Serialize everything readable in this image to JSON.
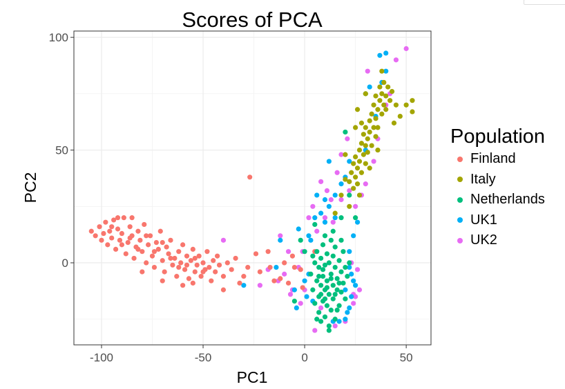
{
  "chart_data": {
    "type": "scatter",
    "title": "Scores of PCA",
    "xlabel": "PC1",
    "ylabel": "PC2",
    "xlim": [
      -113.6,
      62.2
    ],
    "ylim": [
      -36.4,
      102.8
    ],
    "x_ticks": [
      -100,
      -50,
      0,
      50
    ],
    "y_ticks": [
      0,
      50,
      100
    ],
    "x_tick_labels": [
      "-100",
      "-50",
      "0",
      "50"
    ],
    "y_tick_labels": [
      "0",
      "50",
      "100"
    ],
    "grid": true,
    "legend": {
      "title": "Population",
      "position": "right"
    },
    "series": [
      {
        "name": "Finland",
        "color": "#F8766D",
        "points": [
          [
            -105,
            14
          ],
          [
            -103,
            12
          ],
          [
            -101,
            16
          ],
          [
            -100,
            10
          ],
          [
            -99,
            13
          ],
          [
            -98,
            18
          ],
          [
            -97,
            8
          ],
          [
            -96,
            14
          ],
          [
            -95,
            11
          ],
          [
            -94,
            19
          ],
          [
            -93,
            6
          ],
          [
            -92,
            15
          ],
          [
            -91,
            10
          ],
          [
            -90,
            13
          ],
          [
            -89,
            20
          ],
          [
            -88,
            4
          ],
          [
            -87,
            9
          ],
          [
            -86,
            16
          ],
          [
            -85,
            12
          ],
          [
            -84,
            2
          ],
          [
            -83,
            7
          ],
          [
            -82,
            14
          ],
          [
            -81,
            10
          ],
          [
            -80,
            5
          ],
          [
            -79,
            17
          ],
          [
            -78,
            0
          ],
          [
            -77,
            8
          ],
          [
            -76,
            12
          ],
          [
            -75,
            3
          ],
          [
            -74,
            -2
          ],
          [
            -73,
            9
          ],
          [
            -72,
            6
          ],
          [
            -71,
            14
          ],
          [
            -70,
            1
          ],
          [
            -69,
            -4
          ],
          [
            -68,
            7
          ],
          [
            -67,
            4
          ],
          [
            -66,
            10
          ],
          [
            -65,
            -1
          ],
          [
            -64,
            2
          ],
          [
            -63,
            -6
          ],
          [
            -62,
            5
          ],
          [
            -61,
            0
          ],
          [
            -60,
            8
          ],
          [
            -59,
            -3
          ],
          [
            -58,
            3
          ],
          [
            -57,
            -7
          ],
          [
            -56,
            1
          ],
          [
            -55,
            6
          ],
          [
            -54,
            -4
          ],
          [
            -53,
            -1
          ],
          [
            -52,
            3
          ],
          [
            -51,
            -6
          ],
          [
            -50,
            0
          ],
          [
            -49,
            -3
          ],
          [
            -48,
            5
          ],
          [
            -47,
            -2
          ],
          [
            -46,
            -8
          ],
          [
            -45,
            1
          ],
          [
            -44,
            -4
          ],
          [
            -43,
            3
          ],
          [
            -42,
            -1
          ],
          [
            -40,
            -6
          ],
          [
            -38,
            0
          ],
          [
            -36,
            -3
          ],
          [
            -34,
            2
          ],
          [
            -32,
            -9
          ],
          [
            -30,
            -6
          ],
          [
            -28,
            -2
          ],
          [
            -27,
            38
          ],
          [
            -24,
            4
          ],
          [
            -22,
            -4
          ],
          [
            -18,
            5
          ],
          [
            -17,
            -2
          ],
          [
            -15,
            -8
          ],
          [
            -12,
            -7
          ],
          [
            -10,
            0
          ],
          [
            -8,
            -9
          ],
          [
            -6,
            3
          ],
          [
            -5,
            -2
          ],
          [
            -2,
            -3
          ],
          [
            -40,
            -12
          ],
          [
            -60,
            -10
          ],
          [
            -80,
            -4
          ],
          [
            -92,
            20
          ],
          [
            -85,
            20
          ],
          [
            -70,
            -8
          ],
          [
            -55,
            -9
          ],
          [
            5,
            5
          ],
          [
            -1,
            -11
          ],
          [
            -95,
            16
          ],
          [
            -90,
            8
          ],
          [
            -86,
            11
          ],
          [
            -82,
            6
          ],
          [
            -78,
            12
          ],
          [
            -74,
            5
          ],
          [
            -70,
            9
          ],
          [
            -66,
            2
          ],
          [
            -62,
            -2
          ],
          [
            -58,
            -1
          ],
          [
            -54,
            2
          ],
          [
            -50,
            -4
          ]
        ]
      },
      {
        "name": "Italy",
        "color": "#A3A500",
        "points": [
          [
            22,
            36
          ],
          [
            23,
            40
          ],
          [
            24,
            33
          ],
          [
            24,
            44
          ],
          [
            25,
            38
          ],
          [
            25,
            47
          ],
          [
            26,
            42
          ],
          [
            26,
            35
          ],
          [
            27,
            50
          ],
          [
            27,
            45
          ],
          [
            28,
            40
          ],
          [
            28,
            53
          ],
          [
            29,
            48
          ],
          [
            29,
            57
          ],
          [
            30,
            44
          ],
          [
            30,
            52
          ],
          [
            30,
            60
          ],
          [
            31,
            55
          ],
          [
            31,
            49
          ],
          [
            32,
            63
          ],
          [
            32,
            58
          ],
          [
            33,
            52
          ],
          [
            33,
            66
          ],
          [
            34,
            60
          ],
          [
            34,
            70
          ],
          [
            35,
            56
          ],
          [
            35,
            64
          ],
          [
            35,
            74
          ],
          [
            36,
            68
          ],
          [
            36,
            60
          ],
          [
            37,
            72
          ],
          [
            37,
            78
          ],
          [
            38,
            66
          ],
          [
            38,
            75
          ],
          [
            39,
            70
          ],
          [
            39,
            80
          ],
          [
            40,
            74
          ],
          [
            40,
            68
          ],
          [
            41,
            78
          ],
          [
            42,
            72
          ],
          [
            43,
            76
          ],
          [
            45,
            70
          ],
          [
            50,
            70
          ],
          [
            53,
            72
          ],
          [
            53,
            67
          ],
          [
            47,
            65
          ],
          [
            20,
            37
          ],
          [
            18,
            30
          ],
          [
            15,
            22
          ],
          [
            22,
            25
          ],
          [
            27,
            30
          ],
          [
            28,
            62
          ],
          [
            25,
            60
          ],
          [
            30,
            75
          ],
          [
            26,
            68
          ],
          [
            38,
            85
          ],
          [
            32,
            42
          ],
          [
            36,
            50
          ],
          [
            44,
            62
          ],
          [
            20,
            48
          ]
        ]
      },
      {
        "name": "Netherlands",
        "color": "#00BF7D",
        "points": [
          [
            3,
            -5
          ],
          [
            4,
            -12
          ],
          [
            5,
            0
          ],
          [
            5,
            -18
          ],
          [
            6,
            -8
          ],
          [
            6,
            5
          ],
          [
            7,
            -15
          ],
          [
            7,
            -2
          ],
          [
            7,
            -22
          ],
          [
            8,
            -10
          ],
          [
            8,
            2
          ],
          [
            8,
            -26
          ],
          [
            9,
            -6
          ],
          [
            9,
            -17
          ],
          [
            9,
            8
          ],
          [
            10,
            -12
          ],
          [
            10,
            -1
          ],
          [
            10,
            -24
          ],
          [
            11,
            -8
          ],
          [
            11,
            4
          ],
          [
            11,
            -19
          ],
          [
            12,
            -14
          ],
          [
            12,
            0
          ],
          [
            12,
            -28
          ],
          [
            13,
            -5
          ],
          [
            13,
            10
          ],
          [
            13,
            -21
          ],
          [
            14,
            -10
          ],
          [
            14,
            3
          ],
          [
            14,
            -16
          ],
          [
            15,
            -2
          ],
          [
            15,
            -25
          ],
          [
            15,
            7
          ],
          [
            16,
            -12
          ],
          [
            16,
            -7
          ],
          [
            17,
            1
          ],
          [
            17,
            -19
          ],
          [
            18,
            -4
          ],
          [
            18,
            -13
          ],
          [
            19,
            5
          ],
          [
            19,
            -9
          ],
          [
            20,
            -2
          ],
          [
            20,
            -16
          ],
          [
            21,
            -6
          ],
          [
            22,
            0
          ],
          [
            4,
            3
          ],
          [
            6,
            -25
          ],
          [
            10,
            12
          ],
          [
            14,
            14
          ],
          [
            18,
            10
          ],
          [
            12,
            -30
          ],
          [
            9,
            -3
          ],
          [
            11,
            -11
          ],
          [
            13,
            -7
          ],
          [
            15,
            -14
          ],
          [
            17,
            -9
          ],
          [
            7,
            -6
          ],
          [
            10,
            -16
          ],
          [
            16,
            -21
          ],
          [
            8,
            -14
          ],
          [
            -5,
            -17
          ],
          [
            0,
            5
          ],
          [
            18,
            20
          ],
          [
            22,
            30
          ],
          [
            30,
            75
          ],
          [
            20,
            58
          ],
          [
            5,
            17
          ],
          [
            -2,
            10
          ],
          [
            25,
            20
          ]
        ]
      },
      {
        "name": "UK1",
        "color": "#00B0F6",
        "points": [
          [
            -30,
            -10
          ],
          [
            -12,
            10
          ],
          [
            -5,
            -12
          ],
          [
            -3,
            15
          ],
          [
            0,
            -8
          ],
          [
            2,
            -5
          ],
          [
            2,
            12
          ],
          [
            4,
            -17
          ],
          [
            5,
            20
          ],
          [
            3,
            10
          ],
          [
            8,
            22
          ],
          [
            10,
            28
          ],
          [
            12,
            25
          ],
          [
            15,
            30
          ],
          [
            18,
            35
          ],
          [
            20,
            38
          ],
          [
            22,
            45
          ],
          [
            23,
            -15
          ],
          [
            22,
            -20
          ],
          [
            21,
            -22
          ],
          [
            20,
            -25
          ],
          [
            23,
            -5
          ],
          [
            22,
            5
          ],
          [
            24,
            12
          ],
          [
            26,
            18
          ],
          [
            25,
            -10
          ],
          [
            17,
            -26
          ],
          [
            14,
            -26
          ],
          [
            20,
            -12
          ],
          [
            30,
            50
          ],
          [
            35,
            65
          ],
          [
            38,
            80
          ],
          [
            40,
            85
          ],
          [
            40,
            93
          ],
          [
            37,
            92
          ],
          [
            32,
            78
          ],
          [
            10,
            18
          ],
          [
            15,
            20
          ],
          [
            -14,
            -2
          ],
          [
            6,
            30
          ],
          [
            1,
            -15
          ],
          [
            12,
            45
          ],
          [
            22,
            -2
          ],
          [
            24,
            -8
          ],
          [
            -4,
            -20
          ]
        ]
      },
      {
        "name": "UK2",
        "color": "#E76BF3",
        "points": [
          [
            -7,
            -14
          ],
          [
            -10,
            -5
          ],
          [
            -13,
            -8
          ],
          [
            -8,
            5
          ],
          [
            -6,
            -12
          ],
          [
            -3,
            -2
          ],
          [
            -1,
            5
          ],
          [
            0,
            -12
          ],
          [
            2,
            20
          ],
          [
            4,
            25
          ],
          [
            6,
            14
          ],
          [
            8,
            36
          ],
          [
            11,
            32
          ],
          [
            13,
            28
          ],
          [
            16,
            40
          ],
          [
            18,
            48
          ],
          [
            21,
            55
          ],
          [
            25,
            -15
          ],
          [
            24,
            -18
          ],
          [
            23,
            0
          ],
          [
            26,
            -3
          ],
          [
            27,
            -12
          ],
          [
            20,
            -26
          ],
          [
            18,
            28
          ],
          [
            22,
            32
          ],
          [
            25,
            25
          ],
          [
            28,
            30
          ],
          [
            30,
            35
          ],
          [
            34,
            45
          ],
          [
            36,
            55
          ],
          [
            40,
            70
          ],
          [
            42,
            75
          ],
          [
            45,
            90
          ],
          [
            50,
            95
          ],
          [
            31,
            85
          ],
          [
            -12,
            12
          ],
          [
            -18,
            -3
          ],
          [
            -22,
            -10
          ],
          [
            -40,
            10
          ],
          [
            5,
            -30
          ],
          [
            15,
            -28
          ],
          [
            10,
            20
          ],
          [
            14,
            18
          ],
          [
            -2,
            -18
          ],
          [
            8,
            -20
          ],
          [
            24,
            -14
          ]
        ]
      }
    ]
  }
}
